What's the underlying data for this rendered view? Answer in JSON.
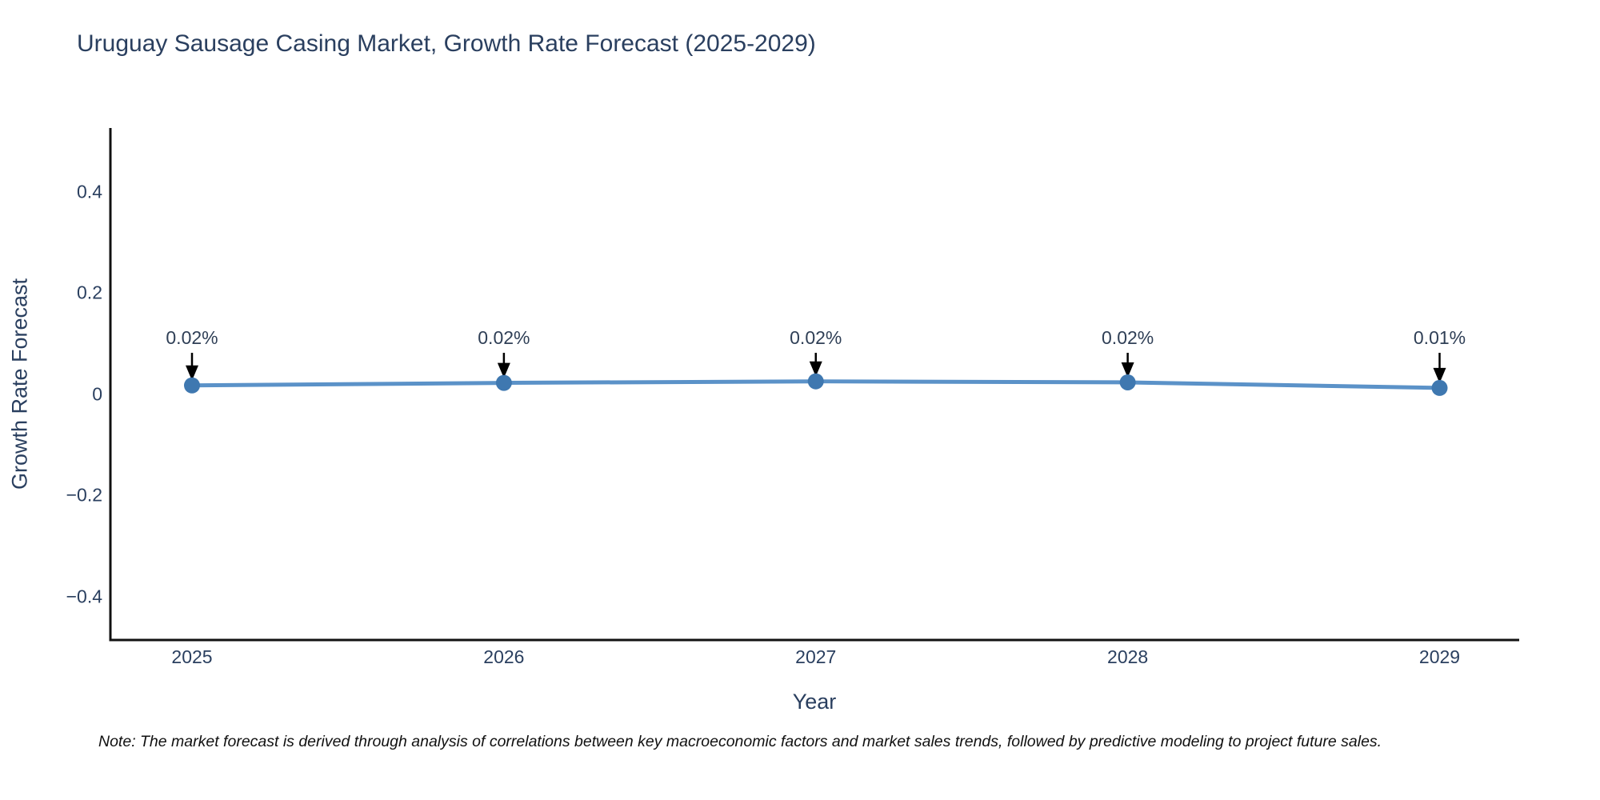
{
  "title": "Uruguay Sausage Casing Market, Growth Rate Forecast (2025-2029)",
  "note": "Note: The market forecast is derived through analysis of correlations between key macroeconomic factors and market sales trends, followed by predictive modeling to project future sales.",
  "colors": {
    "title_text": "#2a3f5f",
    "axis_line": "#111111",
    "tick_text": "#2a3f5f",
    "series_line": "#5b92c8",
    "series_marker": "#3f78b0",
    "annotation_arrow": "#000000",
    "note_text": "#111111",
    "background": "#ffffff"
  },
  "chart_data": {
    "type": "line",
    "title": "Uruguay Sausage Casing Market, Growth Rate Forecast (2025-2029)",
    "xlabel": "Year",
    "ylabel": "Growth Rate Forecast",
    "x": [
      2025,
      2026,
      2027,
      2028,
      2029
    ],
    "series": [
      {
        "name": "Growth Rate Forecast",
        "values": [
          0.017,
          0.022,
          0.025,
          0.023,
          0.012
        ]
      }
    ],
    "point_labels": [
      "0.02%",
      "0.02%",
      "0.02%",
      "0.02%",
      "0.01%"
    ],
    "xtick_labels": [
      "2025",
      "2026",
      "2027",
      "2028",
      "2029"
    ],
    "ytick_values": [
      0.4,
      0.2,
      0,
      -0.2,
      -0.4
    ],
    "ytick_labels": [
      "0.4",
      "0.2",
      "0",
      "−0.2",
      "−0.4"
    ],
    "xlim": [
      2024.74,
      2029.26
    ],
    "ylim": [
      -0.49,
      0.53
    ],
    "grid": false,
    "legend_position": "none",
    "annotation_style": "down-arrow-to-point"
  }
}
